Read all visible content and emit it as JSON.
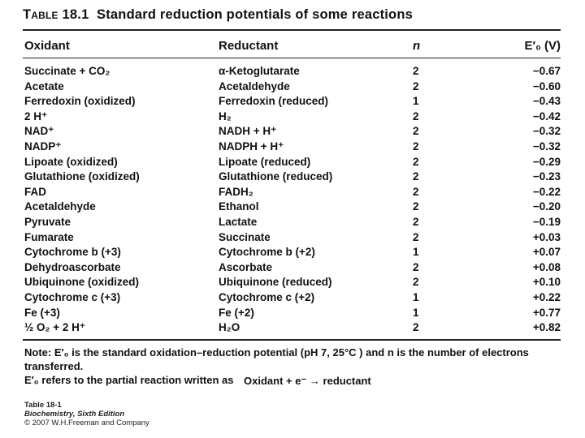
{
  "title": {
    "label": "Table 18.1",
    "text": "Standard reduction potentials of some reactions"
  },
  "headers": {
    "oxidant": "Oxidant",
    "reductant": "Reductant",
    "n": "n",
    "e0": "E′₀ (V)"
  },
  "rows": [
    {
      "oxidant": "Succinate + CO₂",
      "reductant": "α-Ketoglutarate",
      "n": "2",
      "e0": "−0.67"
    },
    {
      "oxidant": "Acetate",
      "reductant": "Acetaldehyde",
      "n": "2",
      "e0": "−0.60"
    },
    {
      "oxidant": "Ferredoxin (oxidized)",
      "reductant": "Ferredoxin (reduced)",
      "n": "1",
      "e0": "−0.43"
    },
    {
      "oxidant": "2 H⁺",
      "reductant": "H₂",
      "n": "2",
      "e0": "−0.42"
    },
    {
      "oxidant": "NAD⁺",
      "reductant": "NADH + H⁺",
      "n": "2",
      "e0": "−0.32"
    },
    {
      "oxidant": "NADP⁺",
      "reductant": "NADPH + H⁺",
      "n": "2",
      "e0": "−0.32"
    },
    {
      "oxidant": "Lipoate (oxidized)",
      "reductant": "Lipoate (reduced)",
      "n": "2",
      "e0": "−0.29"
    },
    {
      "oxidant": "Glutathione (oxidized)",
      "reductant": "Glutathione (reduced)",
      "n": "2",
      "e0": "−0.23"
    },
    {
      "oxidant": "FAD",
      "reductant": "FADH₂",
      "n": "2",
      "e0": "−0.22"
    },
    {
      "oxidant": "Acetaldehyde",
      "reductant": "Ethanol",
      "n": "2",
      "e0": "−0.20"
    },
    {
      "oxidant": "Pyruvate",
      "reductant": "Lactate",
      "n": "2",
      "e0": "−0.19"
    },
    {
      "oxidant": "Fumarate",
      "reductant": "Succinate",
      "n": "2",
      "e0": "+0.03"
    },
    {
      "oxidant": "Cytochrome b (+3)",
      "reductant": "Cytochrome b (+2)",
      "n": "1",
      "e0": "+0.07"
    },
    {
      "oxidant": "Dehydroascorbate",
      "reductant": "Ascorbate",
      "n": "2",
      "e0": "+0.08"
    },
    {
      "oxidant": "Ubiquinone (oxidized)",
      "reductant": "Ubiquinone (reduced)",
      "n": "2",
      "e0": "+0.10"
    },
    {
      "oxidant": "Cytochrome c (+3)",
      "reductant": "Cytochrome c (+2)",
      "n": "1",
      "e0": "+0.22"
    },
    {
      "oxidant": "Fe (+3)",
      "reductant": "Fe (+2)",
      "n": "1",
      "e0": "+0.77"
    },
    {
      "oxidant": "½ O₂ + 2 H⁺",
      "reductant": "H₂O",
      "n": "2",
      "e0": "+0.82"
    }
  ],
  "note": {
    "line1": "Note: E′₀ is the standard oxidation–reduction potential (pH 7, 25°C ) and n is the number of electrons transferred.",
    "line2": "E′₀ refers to the partial reaction written as",
    "equation": "Oxidant + e⁻ → reductant"
  },
  "caption": {
    "table": "Table 18-1",
    "book": "Biochemistry, Sixth Edition",
    "copyright": "© 2007 W.H.Freeman and Company"
  }
}
